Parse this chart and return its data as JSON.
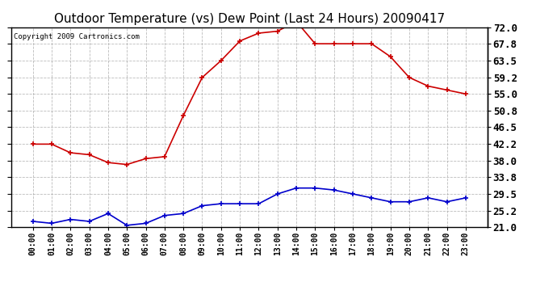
{
  "title": "Outdoor Temperature (vs) Dew Point (Last 24 Hours) 20090417",
  "copyright_text": "Copyright 2009 Cartronics.com",
  "x_labels": [
    "00:00",
    "01:00",
    "02:00",
    "03:00",
    "04:00",
    "05:00",
    "06:00",
    "07:00",
    "08:00",
    "09:00",
    "10:00",
    "11:00",
    "12:00",
    "13:00",
    "14:00",
    "15:00",
    "16:00",
    "17:00",
    "18:00",
    "19:00",
    "20:00",
    "21:00",
    "22:00",
    "23:00"
  ],
  "temp_data": [
    42.2,
    42.2,
    40.0,
    39.5,
    37.5,
    37.0,
    38.5,
    39.0,
    49.5,
    59.2,
    63.5,
    68.5,
    70.5,
    71.0,
    73.5,
    67.8,
    67.8,
    67.8,
    67.8,
    64.5,
    59.2,
    57.0,
    56.0,
    55.0
  ],
  "dew_data": [
    22.5,
    22.0,
    23.0,
    22.5,
    24.5,
    21.5,
    22.0,
    24.0,
    24.5,
    26.5,
    27.0,
    27.0,
    27.0,
    29.5,
    31.0,
    31.0,
    30.5,
    29.5,
    28.5,
    27.5,
    27.5,
    28.5,
    27.5,
    28.5
  ],
  "temp_color": "#cc0000",
  "dew_color": "#0000cc",
  "ylim": [
    21.0,
    72.0
  ],
  "yticks": [
    21.0,
    25.2,
    29.5,
    33.8,
    38.0,
    42.2,
    46.5,
    50.8,
    55.0,
    59.2,
    63.5,
    67.8,
    72.0
  ],
  "background_color": "#ffffff",
  "plot_bg_color": "#ffffff",
  "grid_color": "#aaaaaa",
  "title_fontsize": 11,
  "copyright_fontsize": 6.5,
  "tick_label_fontsize": 9,
  "x_tick_fontsize": 7
}
